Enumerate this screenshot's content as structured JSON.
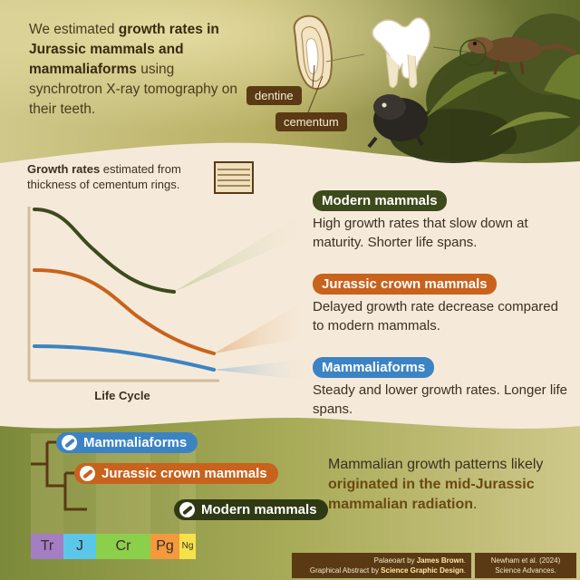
{
  "intro": {
    "p1": "We estimated ",
    "b1": "growth rates in Jurassic mammals and mammaliaforms",
    "p2": " using synchrotron X-ray tomography on their teeth."
  },
  "tooth_labels": {
    "dentine": "dentine",
    "cementum": "cementum"
  },
  "growth": {
    "title_bold": "Growth rates",
    "title_rest": " estimated from thickness of cementum rings.",
    "xlabel": "Life Cycle"
  },
  "groups": [
    {
      "name": "Modern mammals",
      "color": "#3d4a1c",
      "desc": "High growth rates that slow down at maturity. Shorter life spans."
    },
    {
      "name": "Jurassic crown mammals",
      "color": "#c8621c",
      "desc": "Delayed growth rate decrease compared to modern mammals."
    },
    {
      "name": "Mammaliaforms",
      "color": "#3c83c4",
      "desc": "Steady and lower growth rates. Longer life spans."
    }
  ],
  "tree": {
    "mammaliaforms": "Mammaliaforms",
    "jurassic": "Jurassic crown mammals",
    "modern": "Modern mammals"
  },
  "conclusion": {
    "p1": "Mammalian growth patterns likely ",
    "b1": "originated in the mid-Jurassic mammalian radiation",
    "p2": "."
  },
  "periods": [
    {
      "label": "Tr",
      "color": "#a47ec2"
    },
    {
      "label": "J",
      "color": "#5bc7e8"
    },
    {
      "label": "Cr",
      "color": "#8ccf4a"
    },
    {
      "label": "Pg",
      "color": "#f39a3c"
    },
    {
      "label": "Ng",
      "color": "#f5e24a"
    }
  ],
  "credits": {
    "line1_pre": "Palaeoart by ",
    "line1_b": "James Brown",
    "line1_post": ".",
    "line2_pre": "Graphical Abstract by ",
    "line2_b": "Science Graphic Design",
    "line2_post": ".",
    "cite1": "Newham et al. (2024)",
    "cite2": "Science Advances."
  }
}
